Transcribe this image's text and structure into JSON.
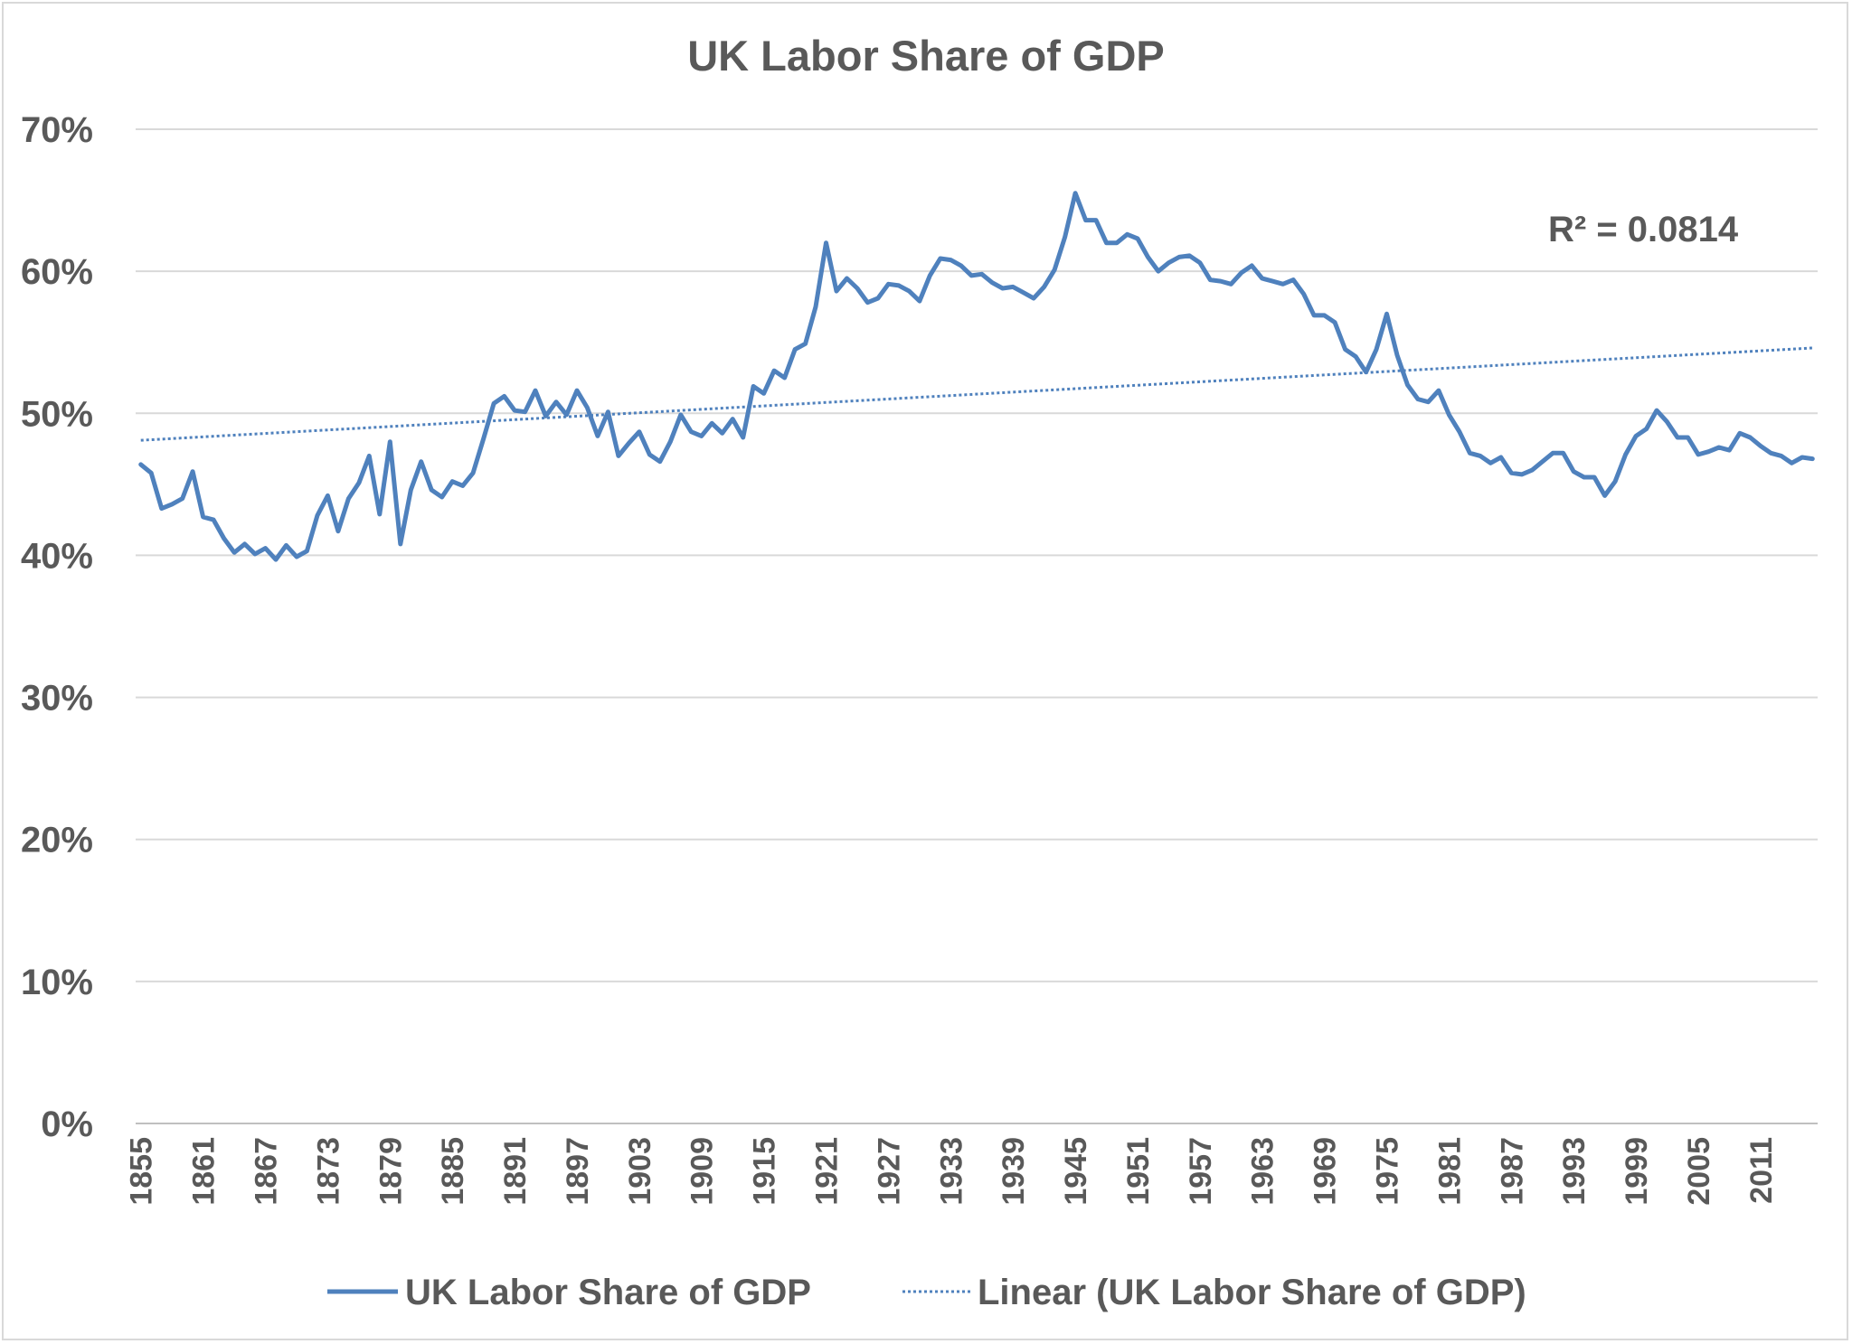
{
  "chart_data": {
    "type": "line",
    "title": "UK Labor Share of GDP",
    "xlabel": "",
    "ylabel": "",
    "ylim": [
      0,
      0.7
    ],
    "yticks": [
      0,
      0.1,
      0.2,
      0.3,
      0.4,
      0.5,
      0.6,
      0.7
    ],
    "ytick_labels": [
      "0%",
      "10%",
      "20%",
      "30%",
      "40%",
      "50%",
      "60%",
      "70%"
    ],
    "xlim": [
      1855,
      2016
    ],
    "xtick_labels": [
      "1855",
      "1861",
      "1867",
      "1873",
      "1879",
      "1885",
      "1891",
      "1897",
      "1903",
      "1909",
      "1915",
      "1921",
      "1927",
      "1933",
      "1939",
      "1945",
      "1951",
      "1957",
      "1963",
      "1969",
      "1975",
      "1981",
      "1987",
      "1993",
      "1999",
      "2005",
      "2011"
    ],
    "grid": true,
    "legend_position": "bottom",
    "series": [
      {
        "name": "UK Labor Share of GDP",
        "color": "#4f81bd",
        "style": "solid",
        "x_start": 1855,
        "values": [
          0.464,
          0.458,
          0.433,
          0.436,
          0.44,
          0.459,
          0.427,
          0.425,
          0.412,
          0.402,
          0.408,
          0.401,
          0.405,
          0.397,
          0.407,
          0.399,
          0.403,
          0.428,
          0.442,
          0.417,
          0.44,
          0.451,
          0.47,
          0.429,
          0.48,
          0.408,
          0.446,
          0.466,
          0.446,
          0.441,
          0.452,
          0.449,
          0.458,
          0.482,
          0.507,
          0.512,
          0.502,
          0.501,
          0.516,
          0.498,
          0.508,
          0.499,
          0.516,
          0.504,
          0.484,
          0.501,
          0.47,
          0.479,
          0.487,
          0.471,
          0.466,
          0.48,
          0.499,
          0.487,
          0.484,
          0.493,
          0.486,
          0.496,
          0.483,
          0.519,
          0.514,
          0.53,
          0.525,
          0.545,
          0.549,
          0.575,
          0.62,
          0.586,
          0.595,
          0.588,
          0.578,
          0.581,
          0.591,
          0.59,
          0.586,
          0.579,
          0.597,
          0.609,
          0.608,
          0.604,
          0.597,
          0.598,
          0.592,
          0.588,
          0.589,
          0.585,
          0.581,
          0.589,
          0.601,
          0.624,
          0.655,
          0.636,
          0.636,
          0.62,
          0.62,
          0.626,
          0.623,
          0.61,
          0.6,
          0.606,
          0.61,
          0.611,
          0.606,
          0.594,
          0.593,
          0.591,
          0.599,
          0.604,
          0.595,
          0.593,
          0.591,
          0.594,
          0.584,
          0.569,
          0.569,
          0.564,
          0.545,
          0.54,
          0.529,
          0.545,
          0.57,
          0.541,
          0.52,
          0.51,
          0.508,
          0.516,
          0.499,
          0.487,
          0.472,
          0.47,
          0.465,
          0.469,
          0.458,
          0.457,
          0.46,
          0.466,
          0.472,
          0.472,
          0.459,
          0.455,
          0.455,
          0.442,
          0.452,
          0.471,
          0.484,
          0.489,
          0.502,
          0.494,
          0.483,
          0.483,
          0.471,
          0.473,
          0.476,
          0.474,
          0.486,
          0.483,
          0.477,
          0.472,
          0.47,
          0.465,
          0.469,
          0.468
        ]
      },
      {
        "name": "Linear (UK Labor Share of GDP)",
        "color": "#4f81bd",
        "style": "dotted",
        "trend_start": 0.481,
        "trend_end": 0.546
      }
    ],
    "annotations": [
      {
        "text": "R² = 0.0814"
      }
    ]
  }
}
